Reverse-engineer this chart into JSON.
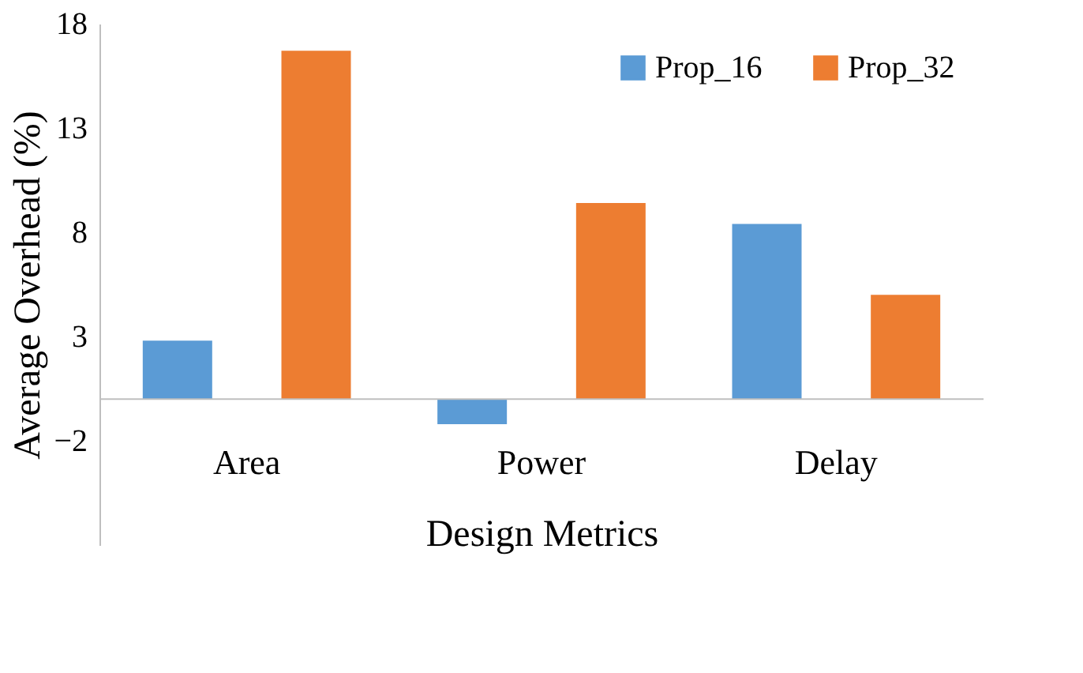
{
  "chart_data": {
    "type": "bar",
    "xlabel": "Design Metrics",
    "ylabel": "Average Overhead (%)",
    "categories": [
      "Area",
      "Power",
      "Delay"
    ],
    "series": [
      {
        "name": "Prop_16",
        "color": "#5b9bd5",
        "values": [
          2.8,
          -1.2,
          8.4
        ]
      },
      {
        "name": "Prop_32",
        "color": "#ed7d31",
        "values": [
          16.7,
          9.4,
          5.0
        ]
      }
    ],
    "ylim": [
      -7,
      18
    ],
    "yticks": [
      -2,
      3,
      8,
      13,
      18
    ],
    "grid": false,
    "legend": "top right"
  }
}
